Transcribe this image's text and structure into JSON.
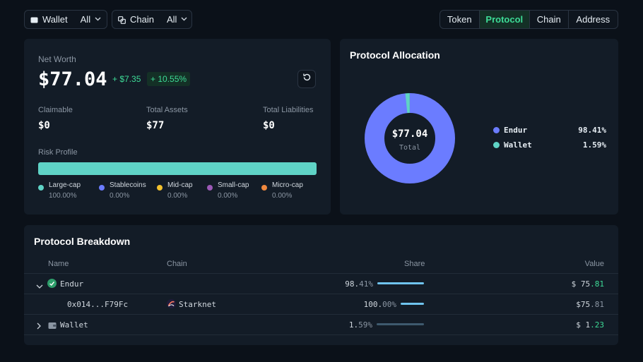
{
  "filters": {
    "wallet": {
      "label": "Wallet",
      "value": "All"
    },
    "chain": {
      "label": "Chain",
      "value": "All"
    }
  },
  "tabs": [
    {
      "label": "Token",
      "active": false
    },
    {
      "label": "Protocol",
      "active": true
    },
    {
      "label": "Chain",
      "active": false
    },
    {
      "label": "Address",
      "active": false
    }
  ],
  "net_worth": {
    "label": "Net Worth",
    "value": "$77.04",
    "change": "+ $7.35",
    "change_pct": "+ 10.55%",
    "stats": [
      {
        "label": "Claimable",
        "value": "$0"
      },
      {
        "label": "Total Assets",
        "value": "$77"
      },
      {
        "label": "Total Liabilities",
        "value": "$0"
      }
    ],
    "risk_label": "Risk Profile",
    "risk_fill_fraction": 1.0,
    "risk_categories": [
      {
        "name": "Large-cap",
        "pct": "100.00%",
        "color": "#5fd3c6"
      },
      {
        "name": "Stablecoins",
        "pct": "0.00%",
        "color": "#6b7cff"
      },
      {
        "name": "Mid-cap",
        "pct": "0.00%",
        "color": "#f2c12e"
      },
      {
        "name": "Small-cap",
        "pct": "0.00%",
        "color": "#9b59b6"
      },
      {
        "name": "Micro-cap",
        "pct": "0.00%",
        "color": "#f0883e"
      }
    ]
  },
  "allocation": {
    "title": "Protocol Allocation",
    "center_value": "$77.04",
    "center_label": "Total",
    "items": [
      {
        "name": "Endur",
        "pct": "98.41%",
        "fraction": 0.9841,
        "color": "#6b7cff"
      },
      {
        "name": "Wallet",
        "pct": "1.59%",
        "fraction": 0.0159,
        "color": "#5fd3c6"
      }
    ]
  },
  "breakdown": {
    "title": "Protocol Breakdown",
    "headers": {
      "name": "Name",
      "chain": "Chain",
      "share": "Share",
      "value": "Value"
    },
    "rows": [
      {
        "name": "Endur",
        "chain": "",
        "share_main": "98.",
        "share_dec": "41%",
        "share_fraction": 0.9841,
        "value_main": "$ 75",
        "value_dec": ".81",
        "expanded": true
      },
      {
        "name": "0x014...F79Fc",
        "chain": "Starknet",
        "share_main": "100.",
        "share_dec": "00%",
        "share_fraction": 1.0,
        "value_main": "$75",
        "value_dec": ".81"
      },
      {
        "name": "Wallet",
        "chain": "",
        "share_main": "1.",
        "share_dec": "59%",
        "share_fraction": 0.0159,
        "value_main": "$ 1",
        "value_dec": ".23",
        "expanded": false
      }
    ]
  }
}
